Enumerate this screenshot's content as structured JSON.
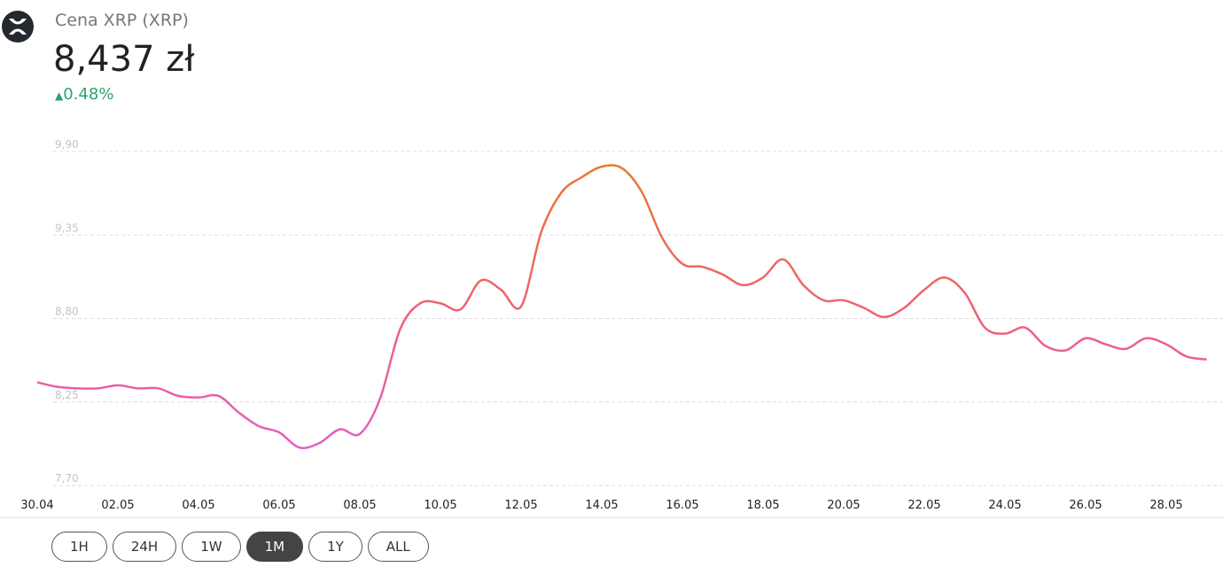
{
  "header": {
    "title": "Cena XRP (XRP)",
    "price": "8,437 zł",
    "change": "0.48%"
  },
  "chart_data": {
    "type": "line",
    "categories": [
      "30.04",
      null,
      null,
      null,
      "02.05",
      null,
      null,
      null,
      "04.05",
      null,
      null,
      null,
      "06.05",
      null,
      null,
      null,
      "08.05",
      null,
      null,
      null,
      "10.05",
      null,
      null,
      null,
      "12.05",
      null,
      null,
      null,
      "14.05",
      null,
      null,
      null,
      "16.05",
      null,
      null,
      null,
      "18.05",
      null,
      null,
      null,
      "20.05",
      null,
      null,
      null,
      "22.05",
      null,
      null,
      null,
      "24.05",
      null,
      null,
      null,
      "26.05",
      null,
      null,
      null,
      "28.05",
      null,
      null
    ],
    "values": [
      8.38,
      8.35,
      8.34,
      8.34,
      8.36,
      8.34,
      8.34,
      8.29,
      8.28,
      8.29,
      8.18,
      8.09,
      8.05,
      7.95,
      7.98,
      8.07,
      8.04,
      8.27,
      8.73,
      8.9,
      8.9,
      8.86,
      9.05,
      8.99,
      8.88,
      9.37,
      9.63,
      9.73,
      9.8,
      9.79,
      9.63,
      9.33,
      9.16,
      9.14,
      9.09,
      9.02,
      9.07,
      9.19,
      9.02,
      8.92,
      8.92,
      8.87,
      8.81,
      8.87,
      8.99,
      9.07,
      8.97,
      8.74,
      8.7,
      8.74,
      8.62,
      8.59,
      8.67,
      8.63,
      8.6,
      8.67,
      8.63,
      8.55,
      8.53
    ],
    "colors": [
      "#ec7a28",
      "#ee6078",
      "#e060dc"
    ],
    "ylim": [
      7.7,
      9.9
    ],
    "yticks": [
      {
        "value": 7.7,
        "label": "7,70"
      },
      {
        "value": 8.25,
        "label": "8,25"
      },
      {
        "value": 8.8,
        "label": "8,80"
      },
      {
        "value": 9.35,
        "label": "9,35"
      },
      {
        "value": 9.9,
        "label": "9,90"
      }
    ],
    "grid": true
  },
  "buttons": [
    "1H",
    "24H",
    "1W",
    "1M",
    "1Y",
    "ALL"
  ],
  "active_button": "1M"
}
